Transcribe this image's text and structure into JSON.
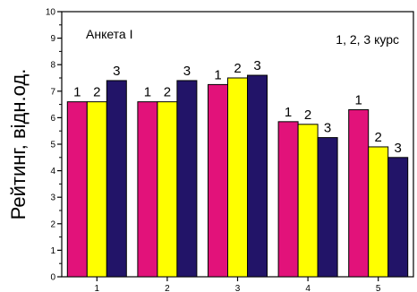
{
  "chart_data": {
    "type": "bar",
    "title": "",
    "xlabel": "",
    "ylabel": "Рейтинг, відн.од.",
    "ylim": [
      0,
      10
    ],
    "yticks": [
      0,
      1,
      2,
      3,
      4,
      5,
      6,
      7,
      8,
      9,
      10
    ],
    "categories": [
      "1",
      "2",
      "3",
      "4",
      "5"
    ],
    "series": [
      {
        "values": [
          6.6,
          6.6,
          7.25,
          5.85,
          6.3
        ],
        "color": "#e2127a"
      },
      {
        "values": [
          6.6,
          6.6,
          7.5,
          5.75,
          4.9
        ],
        "color": "#ffff00"
      },
      {
        "values": [
          7.4,
          7.4,
          7.6,
          5.25,
          4.5
        ],
        "color": "#221468"
      }
    ],
    "bar_labels": [
      "1",
      "2",
      "3"
    ],
    "grid": false,
    "legend": "none",
    "annotations": {
      "top_left": "Анкета I",
      "top_right": "1, 2, 3 курс"
    }
  }
}
